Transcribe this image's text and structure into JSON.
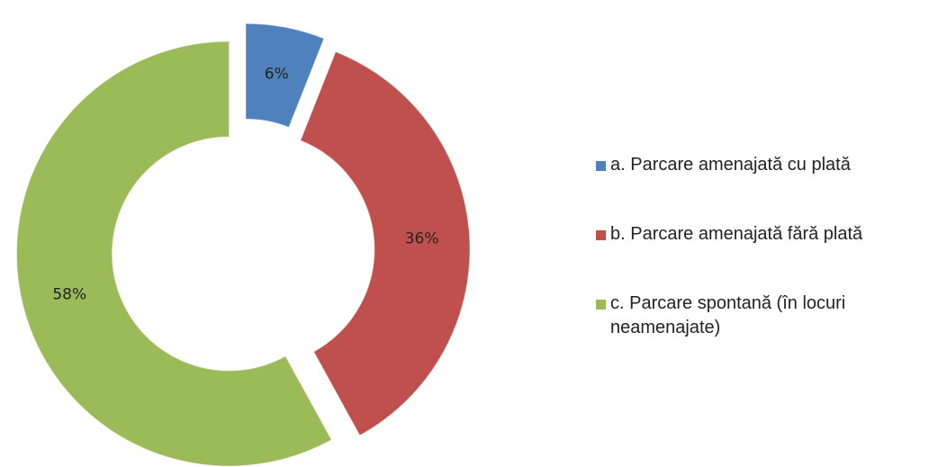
{
  "chart_data": {
    "type": "donut",
    "categories": [
      "a. Parcare amenajată cu plată",
      "b. Parcare amenajată fără plată",
      "c. Parcare spontană (în locuri neamenajate)"
    ],
    "values": [
      6,
      36,
      58
    ],
    "value_labels": [
      "6%",
      "36%",
      "58%"
    ],
    "colors": [
      "#4f81bd",
      "#c0504d",
      "#9bbb59"
    ],
    "legend": "right"
  }
}
